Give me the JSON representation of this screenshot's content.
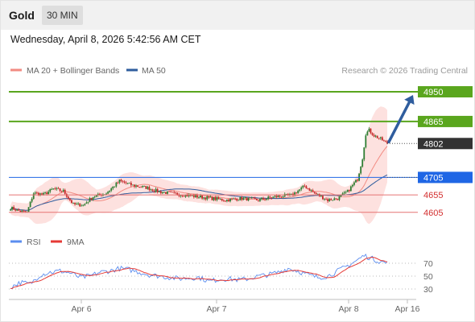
{
  "header": {
    "symbol": "Gold",
    "timeframe": "30 MIN"
  },
  "datetime": "Wednesday, April 8, 2026 5:42:56 AM CET",
  "legend": {
    "items": [
      {
        "label": "MA 20 + Bollinger Bands",
        "color": "#f28b82"
      },
      {
        "label": "MA 50",
        "color": "#2f5d9e"
      }
    ],
    "credit": "Research © 2026 Trading Central"
  },
  "rsi_legend": [
    {
      "label": "RSI",
      "color": "#5b8def"
    },
    {
      "label": "9MA",
      "color": "#e53935"
    }
  ],
  "colors": {
    "resistance": "#5aa61e",
    "support": "#e57373",
    "current": "#333333",
    "ma50": "#1f66e5",
    "candle_up": "#2e7d32",
    "candle_down": "#c62828",
    "arrow": "#2f5d9e"
  },
  "chart_data": {
    "type": "candlestick",
    "ylim": [
      4570,
      4980
    ],
    "x_ticks": [
      "Apr 6",
      "Apr 7",
      "Apr 8",
      "Apr 16"
    ],
    "levels": [
      {
        "value": 4950,
        "label": "4950",
        "kind": "resistance"
      },
      {
        "value": 4865,
        "label": "4865",
        "kind": "resistance"
      },
      {
        "value": 4802,
        "label": "4802",
        "kind": "current"
      },
      {
        "value": 4705,
        "label": "4705",
        "kind": "ma50"
      },
      {
        "value": 4655,
        "label": "4655",
        "kind": "support"
      },
      {
        "value": 4605,
        "label": "4605",
        "kind": "support"
      }
    ],
    "price_anchors": [
      [
        0,
        4618
      ],
      [
        6,
        4608
      ],
      [
        10,
        4605
      ],
      [
        14,
        4660
      ],
      [
        20,
        4656
      ],
      [
        26,
        4672
      ],
      [
        32,
        4666
      ],
      [
        38,
        4628
      ],
      [
        44,
        4626
      ],
      [
        50,
        4650
      ],
      [
        58,
        4660
      ],
      [
        66,
        4695
      ],
      [
        74,
        4682
      ],
      [
        82,
        4676
      ],
      [
        90,
        4664
      ],
      [
        100,
        4658
      ],
      [
        110,
        4652
      ],
      [
        120,
        4646
      ],
      [
        130,
        4640
      ],
      [
        140,
        4645
      ],
      [
        150,
        4640
      ],
      [
        160,
        4650
      ],
      [
        170,
        4654
      ],
      [
        178,
        4680
      ],
      [
        184,
        4660
      ],
      [
        192,
        4640
      ],
      [
        198,
        4645
      ],
      [
        204,
        4665
      ],
      [
        210,
        4700
      ],
      [
        213,
        4760
      ],
      [
        215,
        4830
      ],
      [
        217,
        4840
      ],
      [
        220,
        4825
      ],
      [
        224,
        4815
      ],
      [
        228,
        4802
      ]
    ],
    "forecast_target": 4950,
    "rsi": {
      "ylim": [
        20,
        90
      ],
      "ticks": [
        70,
        50,
        30
      ],
      "anchors": [
        [
          0,
          33
        ],
        [
          6,
          40
        ],
        [
          12,
          38
        ],
        [
          18,
          52
        ],
        [
          24,
          56
        ],
        [
          30,
          58
        ],
        [
          36,
          55
        ],
        [
          42,
          48
        ],
        [
          48,
          50
        ],
        [
          54,
          56
        ],
        [
          60,
          58
        ],
        [
          66,
          62
        ],
        [
          72,
          60
        ],
        [
          78,
          56
        ],
        [
          84,
          52
        ],
        [
          90,
          50
        ],
        [
          96,
          48
        ],
        [
          102,
          46
        ],
        [
          108,
          47
        ],
        [
          114,
          48
        ],
        [
          120,
          42
        ],
        [
          126,
          45
        ],
        [
          132,
          46
        ],
        [
          138,
          44
        ],
        [
          144,
          46
        ],
        [
          150,
          50
        ],
        [
          156,
          52
        ],
        [
          162,
          56
        ],
        [
          168,
          62
        ],
        [
          174,
          58
        ],
        [
          180,
          52
        ],
        [
          186,
          48
        ],
        [
          192,
          50
        ],
        [
          198,
          58
        ],
        [
          204,
          66
        ],
        [
          210,
          75
        ],
        [
          214,
          82
        ],
        [
          218,
          78
        ],
        [
          222,
          74
        ],
        [
          228,
          70
        ]
      ]
    }
  }
}
